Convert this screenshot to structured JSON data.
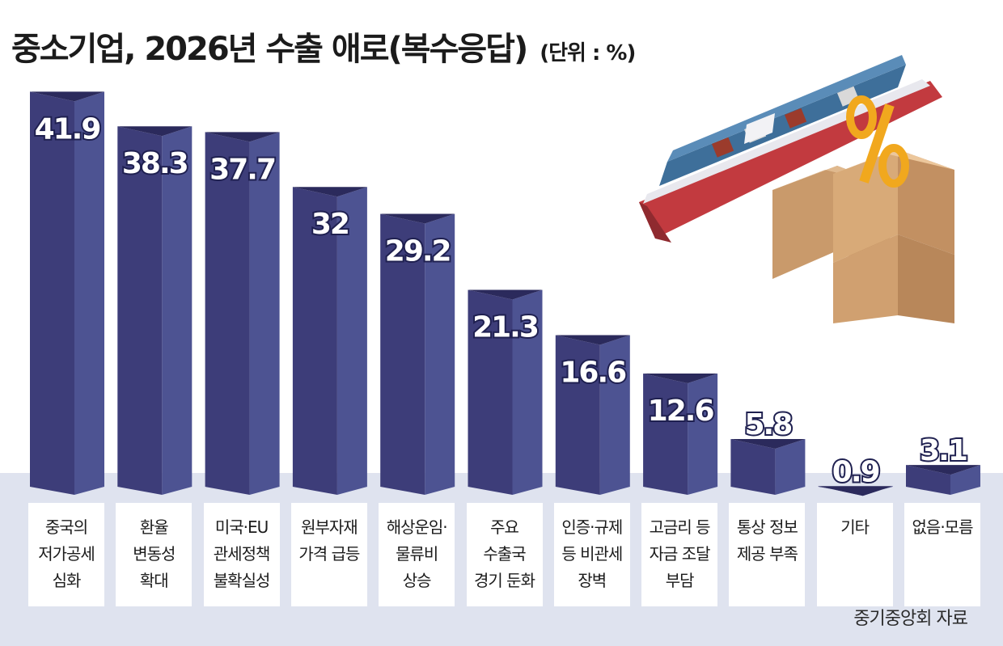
{
  "title": "중소기업, 2026년 수출 애로(복수응답)",
  "unit_note": "(단위 : %)",
  "source": "중기중앙회 자료",
  "colors": {
    "bar_front": "#3d3d79",
    "bar_side": "#4d5392",
    "bar_top": "#2b2a5c",
    "floor": "#dfe3ef"
  },
  "illustration": "container-ship-and-boxes-with-percent-sign",
  "chart_data": {
    "type": "bar",
    "title": "중소기업, 2026년 수출 애로(복수응답)",
    "unit": "%",
    "categories": [
      [
        "중국의",
        "저가공세",
        "심화"
      ],
      [
        "환율",
        "변동성",
        "확대"
      ],
      [
        "미국·EU",
        "관세정책",
        "불확실성"
      ],
      [
        "원부자재",
        "가격 급등"
      ],
      [
        "해상운임·",
        "물류비",
        "상승"
      ],
      [
        "주요",
        "수출국",
        "경기 둔화"
      ],
      [
        "인증·규제",
        "등 비관세",
        "장벽"
      ],
      [
        "고금리 등",
        "자금 조달",
        "부담"
      ],
      [
        "통상 정보",
        "제공 부족"
      ],
      [
        "기타"
      ],
      [
        "없음·모름"
      ]
    ],
    "values": [
      41.9,
      38.3,
      37.7,
      32,
      29.2,
      21.3,
      16.6,
      12.6,
      5.8,
      0.9,
      3.1
    ],
    "value_labels": [
      "41.9",
      "38.3",
      "37.7",
      "32",
      "29.2",
      "21.3",
      "16.6",
      "12.6",
      "5.8",
      "0.9",
      "3.1"
    ],
    "ylim": [
      0,
      45
    ],
    "grid": false,
    "legend": "none"
  }
}
